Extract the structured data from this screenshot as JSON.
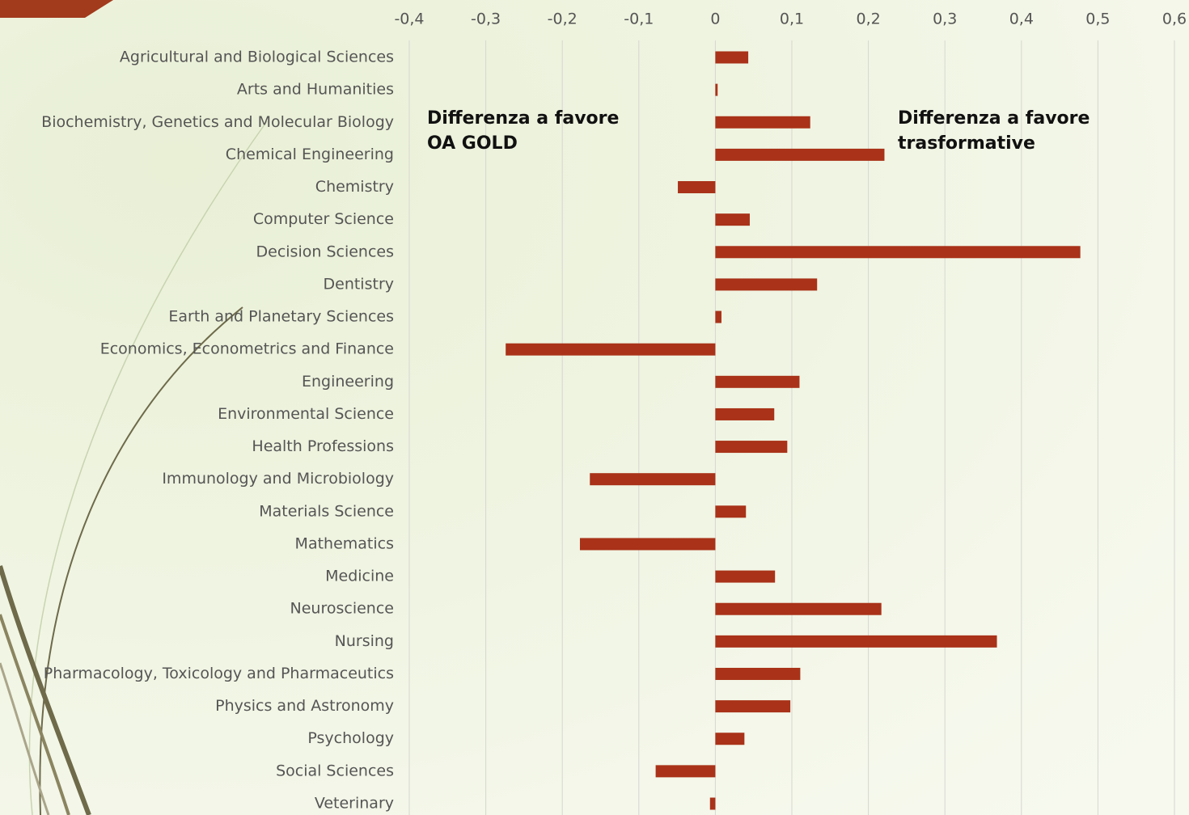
{
  "chart_data": {
    "type": "barh",
    "categories": [
      "Agricultural and Biological Sciences",
      "Arts and Humanities",
      "Biochemistry, Genetics and Molecular Biology",
      "Chemical Engineering",
      "Chemistry",
      "Computer Science",
      "Decision Sciences",
      "Dentistry",
      "Earth and Planetary Sciences",
      "Economics, Econometrics and Finance",
      "Engineering",
      "Environmental Science",
      "Health Professions",
      "Immunology and Microbiology",
      "Materials Science",
      "Mathematics",
      "Medicine",
      "Neuroscience",
      "Nursing",
      "Pharmacology, Toxicology and Pharmaceutics",
      "Physics and Astronomy",
      "Psychology",
      "Social Sciences",
      "Veterinary"
    ],
    "values": [
      0.043,
      0.003,
      0.124,
      0.221,
      -0.049,
      0.045,
      0.477,
      0.133,
      0.008,
      -0.274,
      0.11,
      0.077,
      0.094,
      -0.164,
      0.04,
      -0.177,
      0.078,
      0.217,
      0.368,
      0.111,
      0.098,
      0.038,
      -0.078,
      -0.007
    ],
    "color": "#a93218",
    "xlim": [
      -0.4,
      0.6
    ],
    "xticks": [
      {
        "value": -0.4,
        "label": "-0,4"
      },
      {
        "value": -0.3,
        "label": "-0,3"
      },
      {
        "value": -0.2,
        "label": "-0,2"
      },
      {
        "value": -0.1,
        "label": "-0,1"
      },
      0,
      {
        "value": 0.1,
        "label": "0,1"
      },
      {
        "value": 0.2,
        "label": "0,2"
      },
      {
        "value": 0.3,
        "label": "0,3"
      },
      {
        "value": 0.4,
        "label": "0,4"
      },
      {
        "value": 0.5,
        "label": "0,5"
      },
      {
        "value": 0.6,
        "label": "0,6"
      }
    ],
    "grid": true,
    "annotations": [
      [
        "Differenza a favore",
        "OA GOLD"
      ],
      [
        "Differenza a favore",
        "trasformative"
      ]
    ]
  }
}
